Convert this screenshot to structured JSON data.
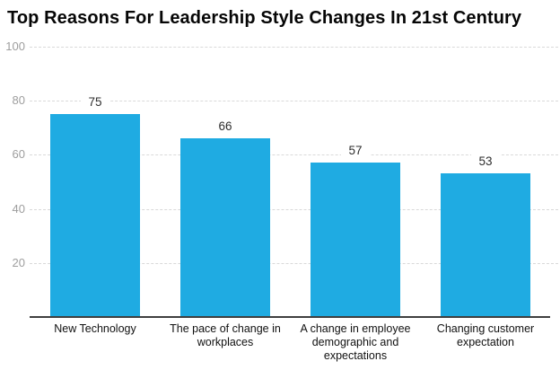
{
  "title": "Top Reasons For Leadership Style Changes In 21st Century",
  "chart_data": {
    "type": "bar",
    "title": "Top Reasons For Leadership Style Changes In 21st Century",
    "categories": [
      "New Technology",
      "The pace of change in workplaces",
      "A change in employee demographic and expectations",
      "Changing customer expectation"
    ],
    "values": [
      75,
      66,
      57,
      53
    ],
    "xlabel": "",
    "ylabel": "",
    "ylim": [
      0,
      100
    ],
    "yticks": [
      20,
      40,
      60,
      80,
      100
    ],
    "grid": true,
    "legend": false,
    "bar_color": "#1fabe2",
    "gridline_color": "#d9d9d9",
    "axis_line_color": "#3f3f3f",
    "tick_label_color": "#9e9e9e",
    "value_label_color": "#2e2e2e",
    "category_label_color": "#111111",
    "title_color": "#060606"
  }
}
